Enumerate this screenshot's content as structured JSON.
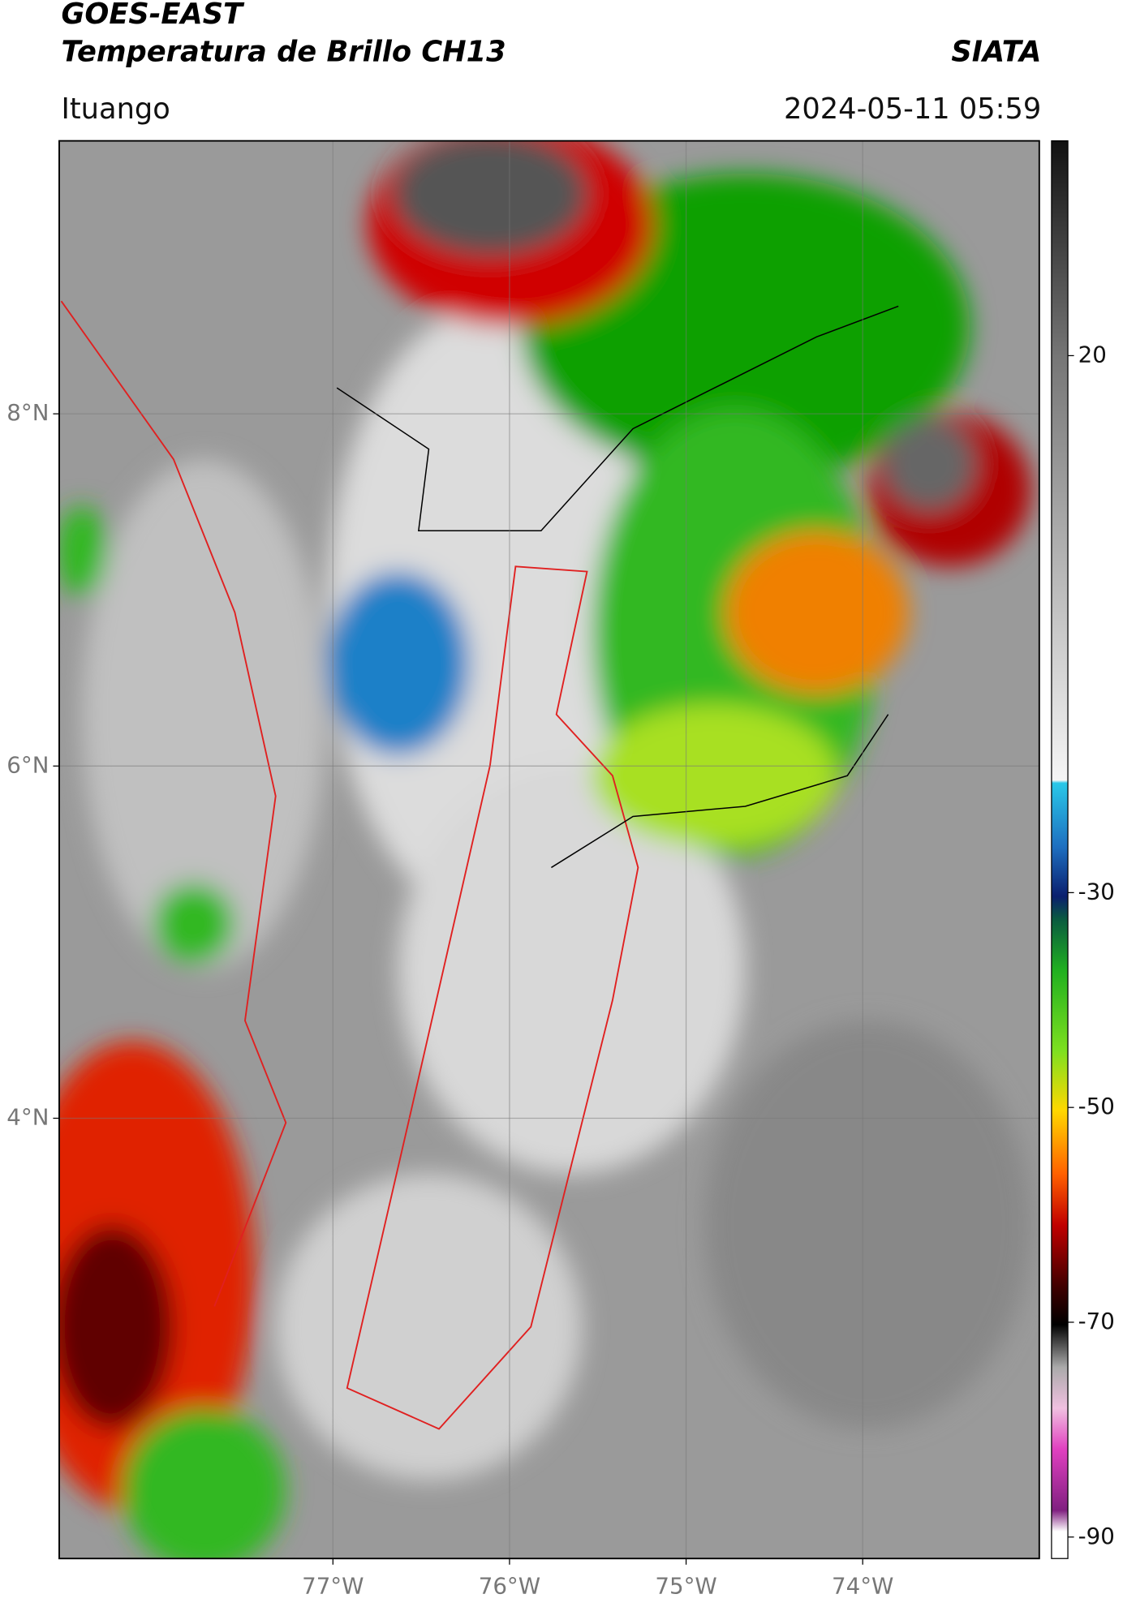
{
  "header": {
    "title": "GOES-EAST",
    "subtitle": "Temperatura de Brillo CH13",
    "source": "SIATA",
    "location": "Ituango",
    "datetime": "2024-05-11 05:59"
  },
  "chart_data": {
    "type": "map",
    "xlim": [
      -78.55,
      -73.0
    ],
    "xticks": [
      {
        "value": -77,
        "label": "77°W"
      },
      {
        "value": -76,
        "label": "76°W"
      },
      {
        "value": -75,
        "label": "75°W"
      },
      {
        "value": -74,
        "label": "74°W"
      }
    ],
    "ylim": [
      1.5,
      9.55
    ],
    "yticks": [
      {
        "value": 4,
        "label": "4°N"
      },
      {
        "value": 6,
        "label": "6°N"
      },
      {
        "value": 8,
        "label": "8°N"
      }
    ],
    "grid": true,
    "colorbar": {
      "lim": [
        -92,
        40
      ],
      "ticks": [
        -90,
        -70,
        -50,
        -30,
        20
      ]
    }
  }
}
